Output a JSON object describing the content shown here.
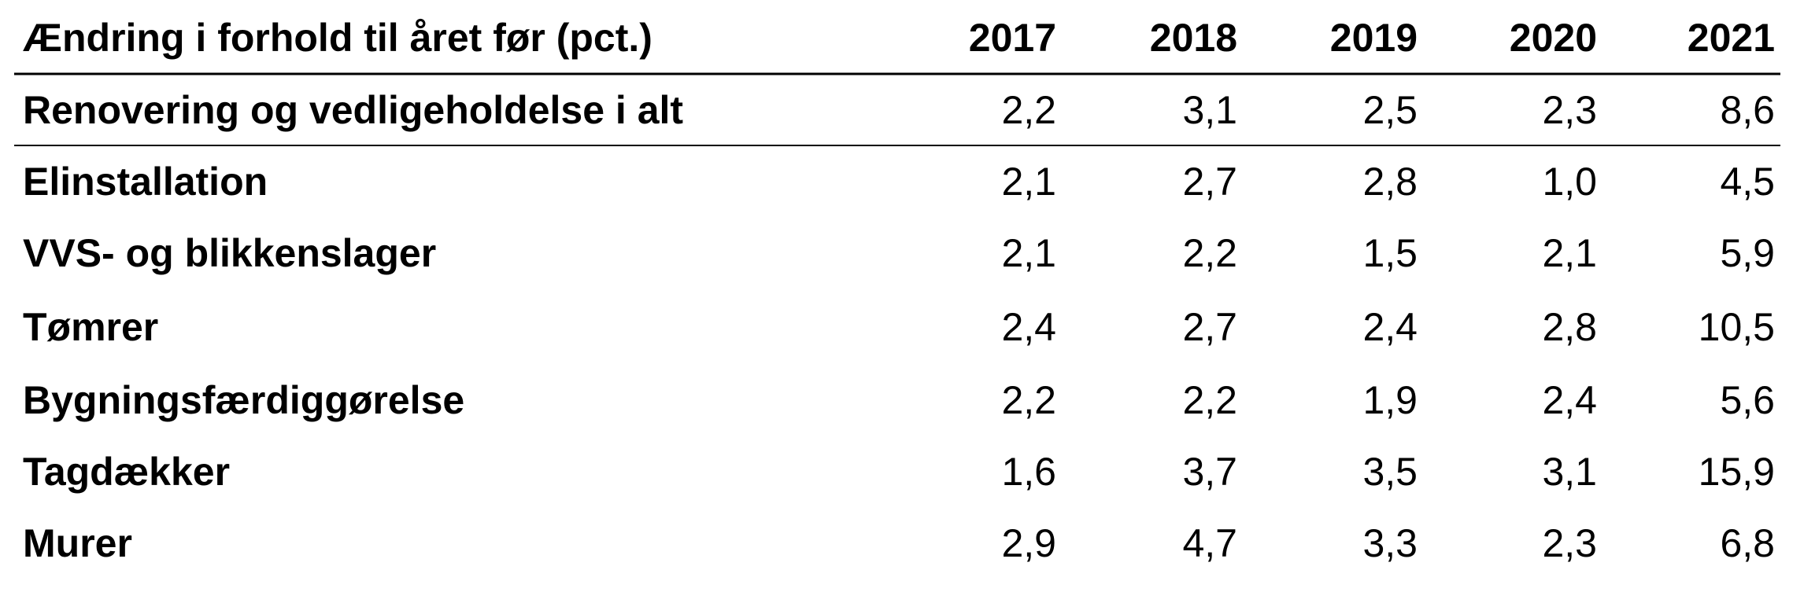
{
  "table": {
    "title": "Ændring i forhold til året før (pct.)",
    "columns": [
      "2017",
      "2018",
      "2019",
      "2020",
      "2021"
    ],
    "rows": [
      {
        "label": "Renovering og vedligeholdelse i alt",
        "values": [
          "2,2",
          "3,1",
          "2,5",
          "2,3",
          "8,6"
        ]
      },
      {
        "label": "Elinstallation",
        "values": [
          "2,1",
          "2,7",
          "2,8",
          "1,0",
          "4,5"
        ]
      },
      {
        "label": "VVS- og blikkenslager",
        "values": [
          "2,1",
          "2,2",
          "1,5",
          "2,1",
          "5,9"
        ]
      },
      {
        "label": "Tømrer",
        "values": [
          "2,4",
          "2,7",
          "2,4",
          "2,8",
          "10,5"
        ]
      },
      {
        "label": "Bygningsfærdiggørelse",
        "values": [
          "2,2",
          "2,2",
          "1,9",
          "2,4",
          "5,6"
        ]
      },
      {
        "label": "Tagdækker",
        "values": [
          "1,6",
          "3,7",
          "3,5",
          "3,1",
          "15,9"
        ]
      },
      {
        "label": "Murer",
        "values": [
          "2,9",
          "4,7",
          "3,3",
          "2,3",
          "6,8"
        ]
      }
    ]
  }
}
